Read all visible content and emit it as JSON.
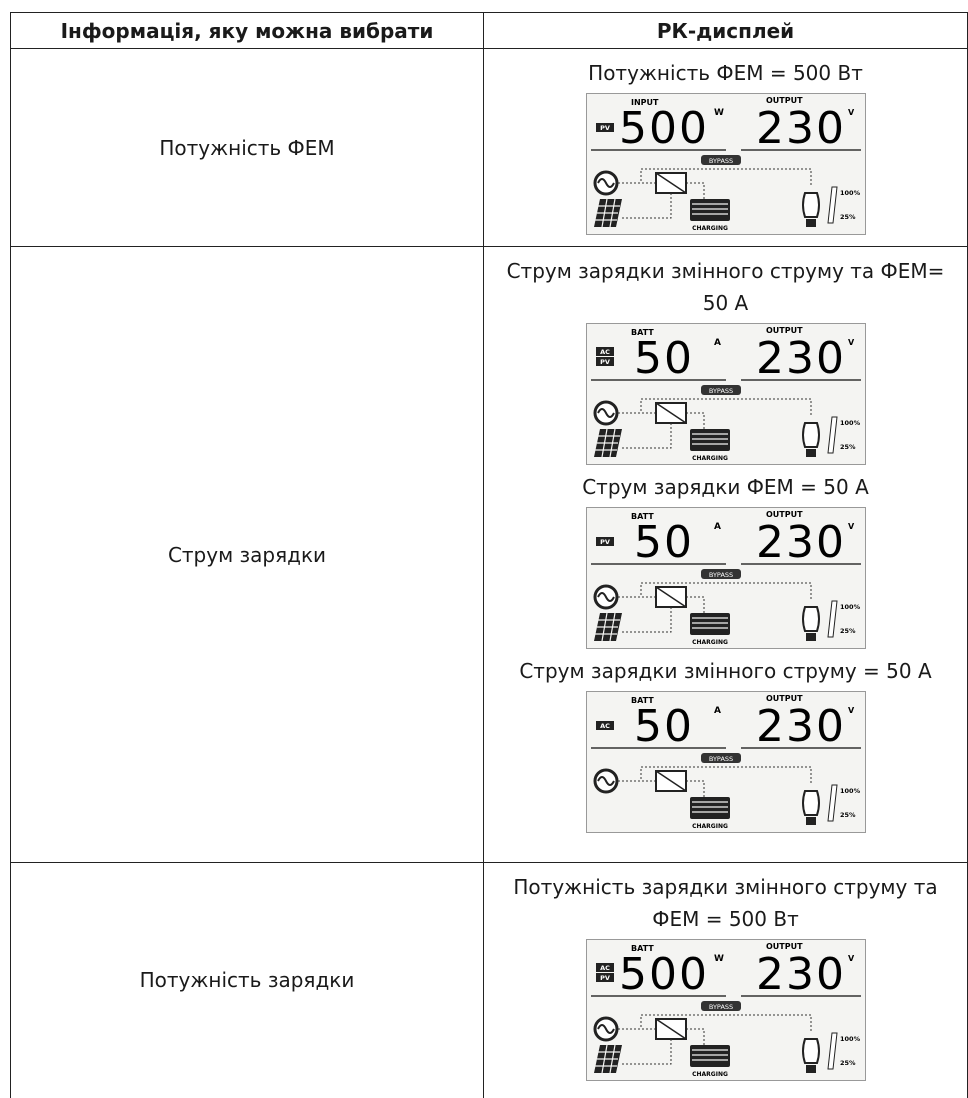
{
  "table": {
    "header": [
      "Інформація, яку можна вибрати",
      "РК-дисплей"
    ],
    "rows": [
      {
        "item": "Потужність ФЕМ",
        "displays": [
          {
            "caption": "Потужність ФЕМ = 500 Вт",
            "lcd": {
              "icons": [
                "PV"
              ],
              "label": "INPUT",
              "value": "500",
              "unit": "W",
              "output_label": "OUTPUT",
              "output_value": "230",
              "output_unit": "V",
              "bypass": "BYPASS",
              "charging": "CHARGING",
              "load_high": "100%",
              "load_low": "25%"
            }
          }
        ]
      },
      {
        "item": "Струм зарядки",
        "displays": [
          {
            "caption": "Струм зарядки змінного струму та ФЕМ= 50 А",
            "lcd": {
              "icons": [
                "AC",
                "PV"
              ],
              "label": "BATT",
              "value": "50",
              "unit": "A",
              "output_label": "OUTPUT",
              "output_value": "230",
              "output_unit": "V",
              "bypass": "BYPASS",
              "charging": "CHARGING",
              "load_high": "100%",
              "load_low": "25%"
            }
          },
          {
            "caption": "Струм зарядки ФЕМ = 50 А",
            "lcd": {
              "icons": [
                "PV"
              ],
              "label": "BATT",
              "value": "50",
              "unit": "A",
              "output_label": "OUTPUT",
              "output_value": "230",
              "output_unit": "V",
              "bypass": "BYPASS",
              "charging": "CHARGING",
              "load_high": "100%",
              "load_low": "25%"
            }
          },
          {
            "caption": "Струм зарядки змінного струму = 50 А",
            "lcd": {
              "icons": [
                "AC"
              ],
              "label": "BATT",
              "value": "50",
              "unit": "A",
              "output_label": "OUTPUT",
              "output_value": "230",
              "output_unit": "V",
              "bypass": "BYPASS",
              "charging": "CHARGING",
              "load_high": "100%",
              "load_low": "25%"
            }
          }
        ]
      },
      {
        "item": "Потужність зарядки",
        "displays": [
          {
            "caption": "Потужність зарядки змінного струму та ФЕМ = 500 Вт",
            "lcd": {
              "icons": [
                "AC",
                "PV"
              ],
              "label": "BATT",
              "value": "500",
              "unit": "W",
              "output_label": "OUTPUT",
              "output_value": "230",
              "output_unit": "V",
              "bypass": "BYPASS",
              "charging": "CHARGING",
              "load_high": "100%",
              "load_low": "25%"
            }
          }
        ]
      }
    ]
  }
}
